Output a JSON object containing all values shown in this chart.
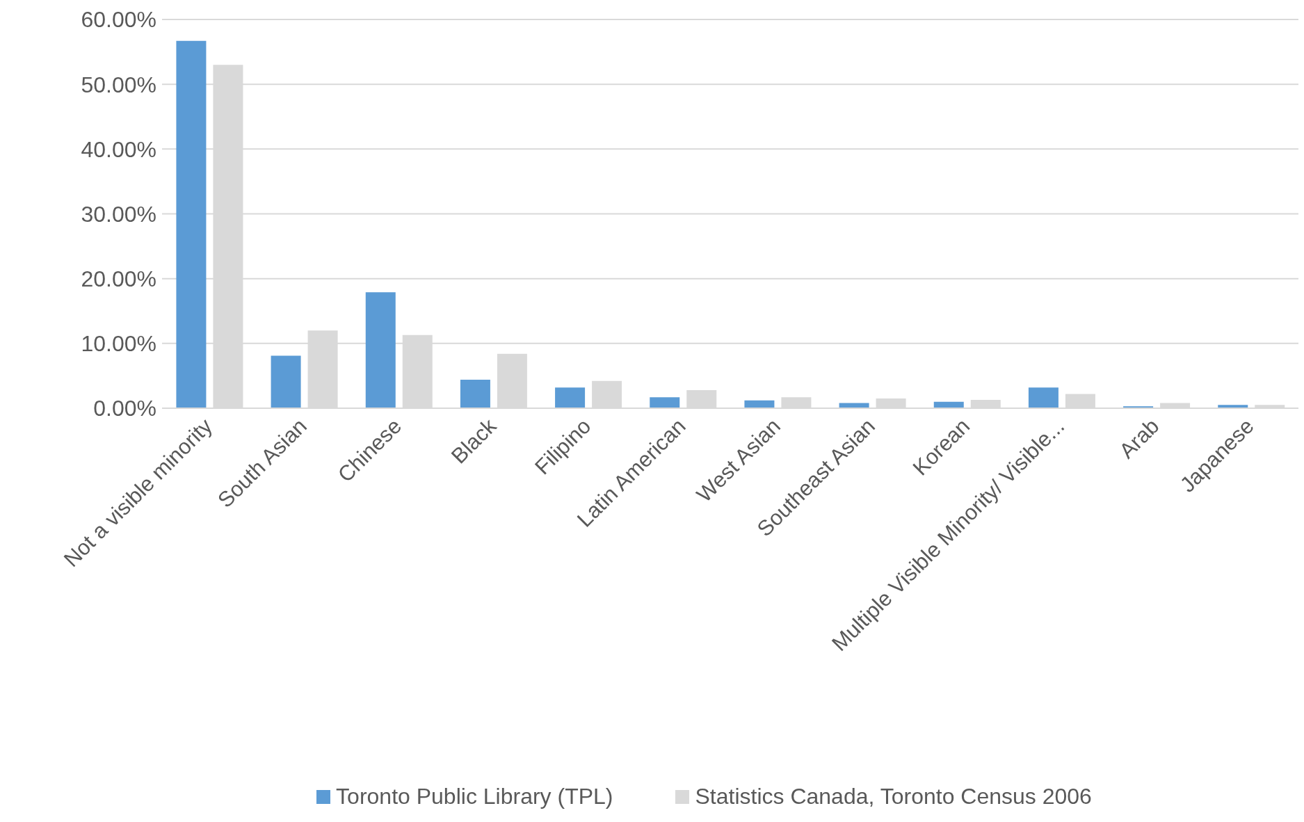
{
  "chart_data": {
    "type": "bar",
    "categories": [
      "Not a visible minority",
      "South Asian",
      "Chinese",
      "Black",
      "Filipino",
      "Latin American",
      "West Asian",
      "Southeast Asian",
      "Korean",
      "Multiple Visible Minority/ Visible...",
      "Arab",
      "Japanese"
    ],
    "series": [
      {
        "name": "Toronto Public Library (TPL)",
        "color": "#5b9bd5",
        "values": [
          56.7,
          8.1,
          17.9,
          4.4,
          3.2,
          1.7,
          1.2,
          0.8,
          1.0,
          3.2,
          0.3,
          0.5
        ]
      },
      {
        "name": "Statistics Canada, Toronto Census 2006",
        "color": "#d9d9d9",
        "values": [
          53.0,
          12.0,
          11.3,
          8.4,
          4.2,
          2.8,
          1.7,
          1.5,
          1.3,
          2.2,
          0.8,
          0.5
        ]
      }
    ],
    "ylim": [
      0,
      60
    ],
    "yticks": [
      {
        "value": 0,
        "label": "0.00%"
      },
      {
        "value": 10,
        "label": "10.00%"
      },
      {
        "value": 20,
        "label": "20.00%"
      },
      {
        "value": 30,
        "label": "30.00%"
      },
      {
        "value": 40,
        "label": "40.00%"
      },
      {
        "value": 50,
        "label": "50.00%"
      },
      {
        "value": 60,
        "label": "60.00%"
      }
    ],
    "grid": "y",
    "legend": "bottom"
  }
}
